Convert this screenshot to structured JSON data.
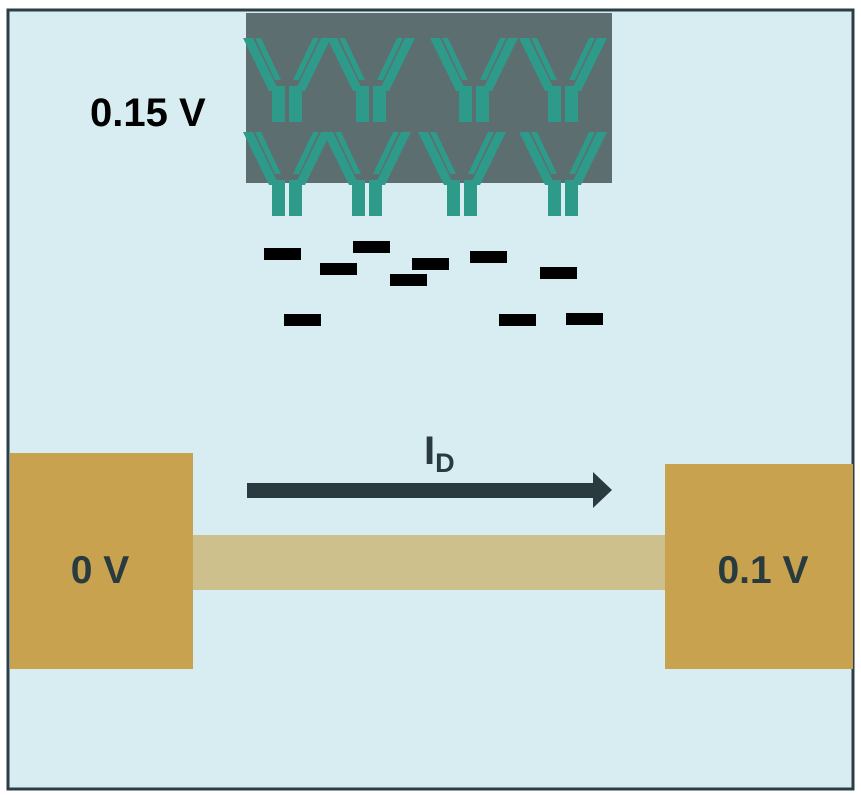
{
  "labels": {
    "gate_voltage": "0.15 V",
    "source_voltage": "0 V",
    "drain_voltage": "0.1 V",
    "current_main": "I",
    "current_sub": "D"
  },
  "colors": {
    "background": "#d7edf2",
    "border": "#2c3e45",
    "gate": "#5c6e70",
    "antibody": "#2e9a89",
    "electrode": "#c8a24f",
    "channel": "#cdc08d",
    "arrow": "#293b3f",
    "charge": "#000000",
    "gate_label": "#000000",
    "electrode_label": "#293b3f"
  },
  "icons": {
    "antibody": "antibody-icon",
    "charge": "negative-charge-icon",
    "current": "arrow-right-icon"
  }
}
